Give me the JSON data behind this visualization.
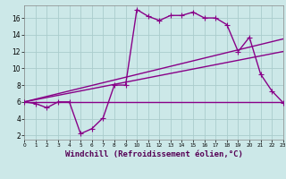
{
  "bg_color": "#cce8e8",
  "grid_color": "#aacccc",
  "line_color": "#880088",
  "marker": "+",
  "marker_size": 4,
  "line_width": 1.0,
  "series1_x": [
    0,
    1,
    2,
    3,
    4,
    5,
    6,
    7,
    8,
    9,
    10,
    11,
    12,
    13,
    14,
    15,
    16,
    17,
    18,
    19,
    20,
    21,
    22,
    23
  ],
  "series1_y": [
    6.0,
    5.8,
    5.3,
    6.0,
    6.0,
    2.2,
    2.8,
    4.1,
    8.0,
    8.0,
    17.0,
    16.2,
    15.7,
    16.3,
    16.3,
    16.7,
    16.0,
    16.0,
    15.2,
    12.0,
    13.7,
    9.3,
    7.3,
    5.9
  ],
  "series2_x": [
    0,
    23
  ],
  "series2_y": [
    6.0,
    6.0
  ],
  "series3_x": [
    0,
    23
  ],
  "series3_y": [
    6.0,
    13.5
  ],
  "series4_x": [
    0,
    23
  ],
  "series4_y": [
    6.0,
    12.0
  ],
  "xlabel": "Windchill (Refroidissement éolien,°C)",
  "yticks": [
    2,
    4,
    6,
    8,
    10,
    12,
    14,
    16
  ],
  "xticks": [
    0,
    1,
    2,
    3,
    4,
    5,
    6,
    7,
    8,
    9,
    10,
    11,
    12,
    13,
    14,
    15,
    16,
    17,
    18,
    19,
    20,
    21,
    22,
    23
  ],
  "xlim": [
    0,
    23
  ],
  "ylim": [
    1.5,
    17.5
  ]
}
